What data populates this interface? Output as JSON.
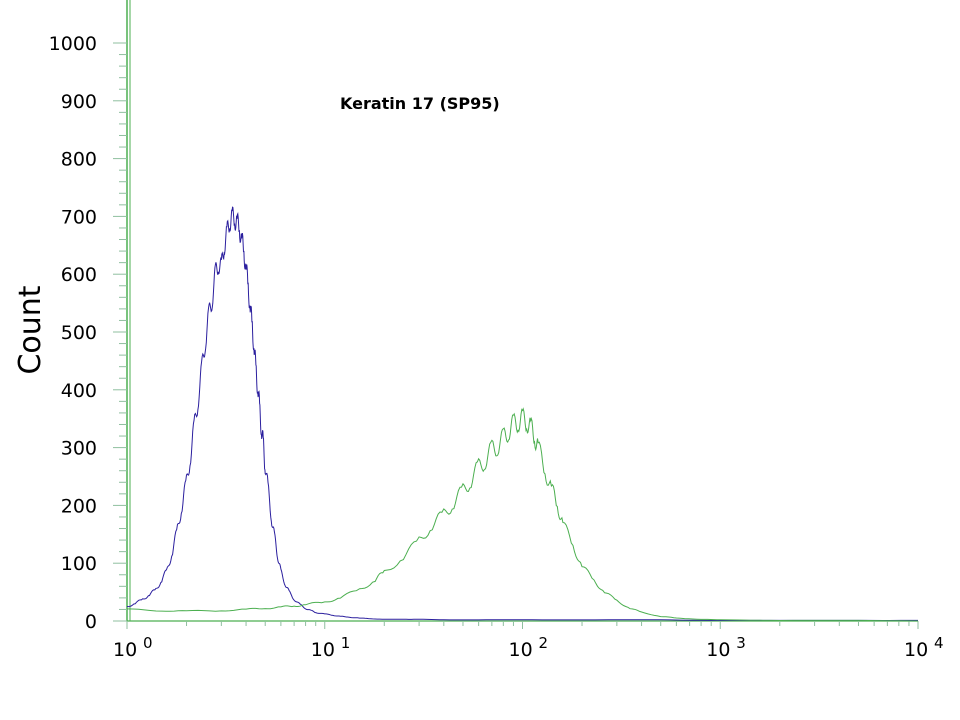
{
  "chart_data": {
    "type": "line",
    "title": "",
    "annotation": "Keratin 17 (SP95)",
    "xlabel": "",
    "ylabel": "Count",
    "x_scale": "log",
    "xlim": [
      1,
      10000
    ],
    "ylim": [
      0,
      1000
    ],
    "x_ticks": [
      {
        "base": "10",
        "exp": "0"
      },
      {
        "base": "10",
        "exp": "1"
      },
      {
        "base": "10",
        "exp": "2"
      },
      {
        "base": "10",
        "exp": "3"
      },
      {
        "base": "10",
        "exp": "4"
      }
    ],
    "y_ticks": [
      "0",
      "100",
      "200",
      "300",
      "400",
      "500",
      "600",
      "700",
      "800",
      "900",
      "1000"
    ],
    "grid": false,
    "series": [
      {
        "color": "#2b1f9e",
        "x": [
          1.0,
          1.1,
          1.2,
          1.3,
          1.4,
          1.5,
          1.6,
          1.7,
          1.8,
          1.9,
          2.0,
          2.1,
          2.2,
          2.3,
          2.4,
          2.5,
          2.6,
          2.7,
          2.8,
          2.9,
          3.0,
          3.1,
          3.2,
          3.3,
          3.4,
          3.5,
          3.6,
          3.7,
          3.8,
          3.9,
          4.0,
          4.1,
          4.2,
          4.3,
          4.4,
          4.5,
          4.6,
          4.7,
          4.8,
          4.9,
          5.0,
          5.2,
          5.4,
          5.6,
          5.8,
          6.0,
          6.3,
          6.6,
          7.0,
          7.5,
          8.0,
          8.5,
          9.0,
          10,
          11,
          12,
          13,
          15,
          17,
          20,
          25,
          30,
          40,
          60,
          100,
          200,
          500,
          1000,
          3000,
          10000
        ],
        "y": [
          25,
          30,
          38,
          45,
          55,
          70,
          90,
          120,
          160,
          200,
          240,
          290,
          340,
          390,
          440,
          490,
          530,
          560,
          600,
          620,
          610,
          650,
          670,
          690,
          700,
          695,
          690,
          680,
          660,
          640,
          610,
          580,
          540,
          510,
          470,
          430,
          400,
          360,
          330,
          300,
          270,
          220,
          175,
          140,
          110,
          85,
          65,
          50,
          38,
          28,
          22,
          18,
          15,
          12,
          10,
          8,
          7,
          5,
          4,
          3,
          3,
          3,
          2,
          2,
          2,
          2,
          2,
          1,
          1,
          1
        ]
      },
      {
        "color": "#4caf50",
        "x": [
          1.0,
          1.5,
          2.0,
          3.0,
          4.0,
          5.0,
          6.0,
          7.0,
          8.0,
          10,
          12,
          15,
          18,
          20,
          25,
          30,
          35,
          40,
          45,
          50,
          55,
          60,
          65,
          70,
          75,
          80,
          85,
          90,
          95,
          100,
          105,
          110,
          115,
          120,
          130,
          140,
          150,
          160,
          180,
          200,
          230,
          260,
          300,
          350,
          400,
          500,
          600,
          800,
          1000,
          2000,
          5000,
          10000
        ],
        "y": [
          20,
          18,
          17,
          18,
          20,
          22,
          24,
          26,
          28,
          33,
          40,
          55,
          70,
          85,
          110,
          140,
          165,
          185,
          205,
          225,
          245,
          265,
          280,
          295,
          305,
          315,
          330,
          340,
          345,
          350,
          345,
          335,
          320,
          300,
          260,
          230,
          200,
          170,
          130,
          95,
          70,
          50,
          35,
          22,
          15,
          8,
          5,
          3,
          2,
          1,
          1,
          0
        ]
      }
    ]
  }
}
